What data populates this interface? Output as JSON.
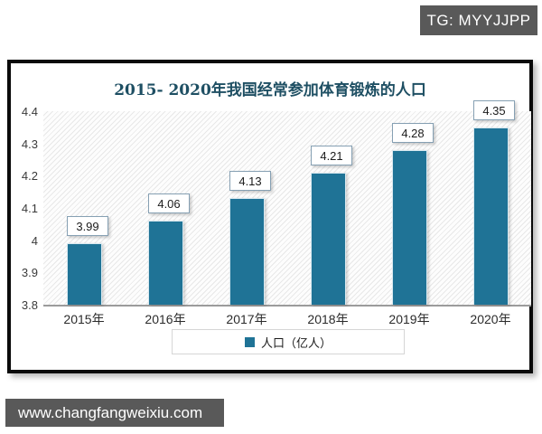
{
  "badge": {
    "text": "TG: MYYJJPP"
  },
  "watermark": {
    "url": "www.changfangweixiu.com"
  },
  "colors": {
    "bar_teal": "#1f7396",
    "title_text": "#1e4f63",
    "badge_bg": "#595959",
    "frame_border": "#0a0a0a"
  },
  "chart_data": {
    "type": "bar",
    "title": "2015- 2020年我国经常参加体育锻炼的人口",
    "categories": [
      "2015年",
      "2016年",
      "2017年",
      "2018年",
      "2019年",
      "2020年"
    ],
    "values": [
      3.99,
      4.06,
      4.13,
      4.21,
      4.28,
      4.35
    ],
    "data_labels": [
      "3.99",
      "4.06",
      "4.13",
      "4.21",
      "4.28",
      "4.35"
    ],
    "legend": [
      "人口（亿人）"
    ],
    "legend_position": "bottom",
    "ylim": [
      3.8,
      4.4
    ],
    "yticks": [
      3.8,
      3.9,
      4,
      4.1,
      4.2,
      4.3,
      4.4
    ],
    "ytick_labels": [
      "3.8",
      "3.9",
      "4",
      "4.1",
      "4.2",
      "4.3",
      "4.4"
    ],
    "grid": false,
    "plot_background": "diagonal-hatch"
  }
}
